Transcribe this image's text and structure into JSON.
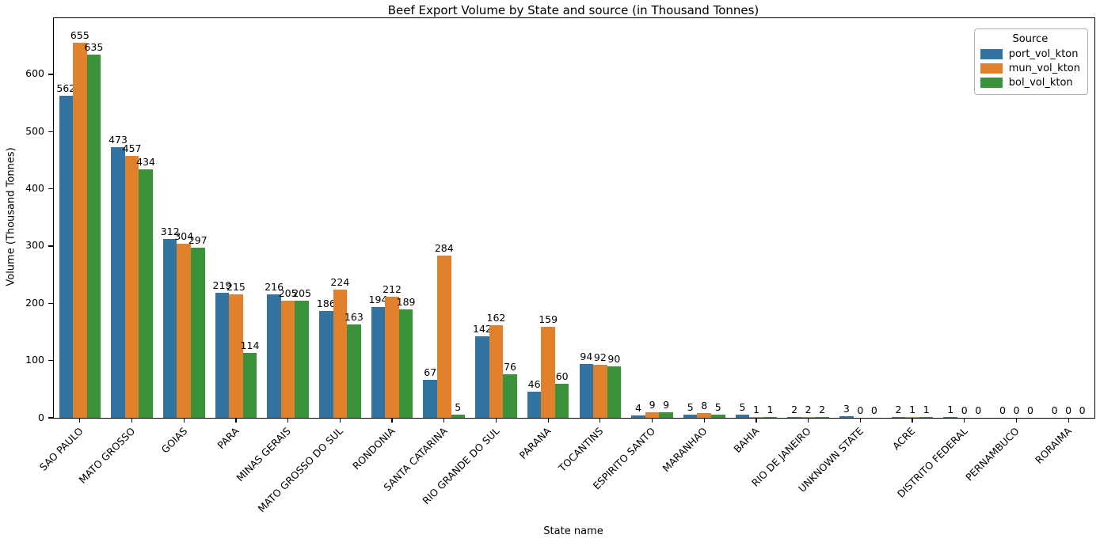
{
  "chart_data": {
    "type": "bar",
    "title": "Beef Export Volume by State and source (in Thousand Tonnes)",
    "xlabel": "State name",
    "ylabel": "Volume (Thousand Tonnes)",
    "categories": [
      "SAO PAULO",
      "MATO GROSSO",
      "GOIAS",
      "PARA",
      "MINAS GERAIS",
      "MATO GROSSO DO SUL",
      "RONDONIA",
      "SANTA CATARINA",
      "RIO GRANDE DO SUL",
      "PARANA",
      "TOCANTINS",
      "ESPIRITO SANTO",
      "MARANHAO",
      "BAHIA",
      "RIO DE JANEIRO",
      "UNKNOWN STATE",
      "ACRE",
      "DISTRITO FEDERAL",
      "PERNAMBUCO",
      "RORAIMA"
    ],
    "series": [
      {
        "name": "port_vol_kton",
        "color": "#3274a1",
        "values": [
          562,
          473,
          312,
          219,
          216,
          186,
          194,
          67,
          142,
          46,
          94,
          4,
          5,
          5,
          2,
          3,
          2,
          1,
          0,
          0
        ]
      },
      {
        "name": "mun_vol_kton",
        "color": "#e1812c",
        "values": [
          655,
          457,
          304,
          215,
          205,
          224,
          212,
          284,
          162,
          159,
          92,
          9,
          8,
          1,
          2,
          0,
          1,
          0,
          0,
          0
        ]
      },
      {
        "name": "bol_vol_kton",
        "color": "#3a923a",
        "values": [
          635,
          434,
          297,
          114,
          205,
          163,
          189,
          5,
          76,
          60,
          90,
          9,
          5,
          1,
          2,
          0,
          1,
          0,
          0,
          0
        ]
      }
    ],
    "yticks": [
      0,
      100,
      200,
      300,
      400,
      500,
      600
    ],
    "ylim": [
      0,
      698
    ],
    "bar_value_labels": true,
    "grid": false,
    "legend": {
      "title": "Source",
      "position": "upper right"
    }
  }
}
